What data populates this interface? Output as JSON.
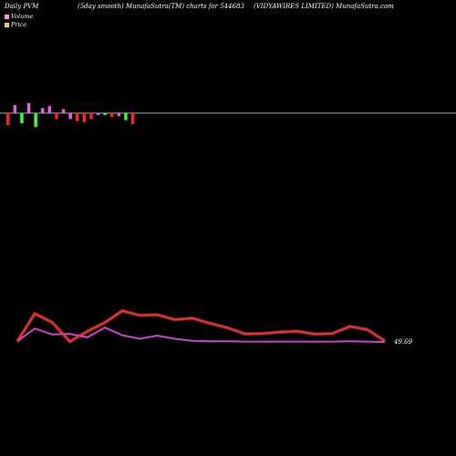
{
  "header": {
    "left": "Daily PVM",
    "middle": "(5day smooth) MunafaSutra(TM) charts for 544683",
    "right": "(VIDYAWIRES LIMITED) MunafaSutra.com"
  },
  "legend": {
    "volume": "Volume",
    "price": "Price",
    "volume_color": "#ff99cc",
    "price_color": "#ffcc66"
  },
  "colors": {
    "background": "#000000",
    "baseline": "#aaaaaa",
    "up_bar": "#33ff33",
    "down_bar": "#ff2222",
    "neutral_bar": "#dd66dd",
    "price_line": "#ff2a2a",
    "price_line_glow": "#ff8888",
    "smooth_line": "#cc44cc"
  },
  "chart_data": {
    "type": "line",
    "price_label": "49.69",
    "volume_bars": [
      {
        "v": -12,
        "c": "down"
      },
      {
        "v": 8,
        "c": "neutral"
      },
      {
        "v": -10,
        "c": "up"
      },
      {
        "v": 10,
        "c": "neutral"
      },
      {
        "v": -14,
        "c": "up"
      },
      {
        "v": 5,
        "c": "neutral"
      },
      {
        "v": 7,
        "c": "neutral"
      },
      {
        "v": -6,
        "c": "down"
      },
      {
        "v": 4,
        "c": "neutral"
      },
      {
        "v": -6,
        "c": "neutral"
      },
      {
        "v": -8,
        "c": "down"
      },
      {
        "v": -9,
        "c": "down"
      },
      {
        "v": -6,
        "c": "down"
      },
      {
        "v": -2,
        "c": "neutral"
      },
      {
        "v": -2,
        "c": "up"
      },
      {
        "v": -4,
        "c": "down"
      },
      {
        "v": -3,
        "c": "neutral"
      },
      {
        "v": -7,
        "c": "up"
      },
      {
        "v": -11,
        "c": "down"
      }
    ],
    "price_series": [
      49.7,
      57.5,
      55.0,
      49.6,
      52.5,
      55.0,
      58.3,
      57.0,
      57.2,
      55.8,
      56.2,
      54.8,
      53.5,
      51.8,
      51.9,
      52.3,
      52.5,
      51.7,
      51.9,
      53.9,
      53.0,
      49.8
    ],
    "smooth_series": [
      49.7,
      53.3,
      51.6,
      51.8,
      50.8,
      53.6,
      51.4,
      50.4,
      51.3,
      50.4,
      49.8,
      49.7,
      49.7,
      49.6,
      49.6,
      49.6,
      49.6,
      49.6,
      49.6,
      49.7,
      49.6,
      49.5
    ]
  }
}
